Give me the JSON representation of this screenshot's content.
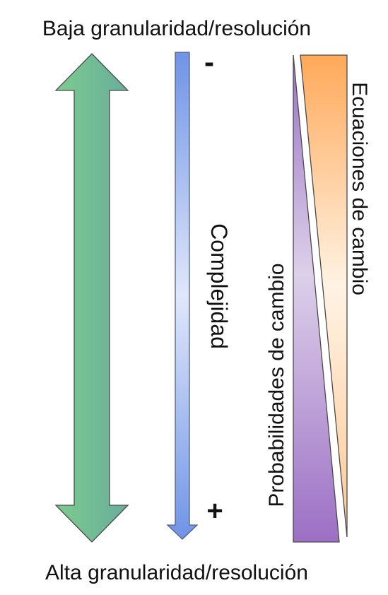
{
  "labels": {
    "top": "Baja granularidad/resolución",
    "bottom": "Alta granularidad/resolución",
    "complexity": "Complejidad",
    "minus": "-",
    "plus": "+",
    "probabilities": "Probabilidades de cambio",
    "equations": "Ecuaciones de cambio"
  },
  "colors": {
    "arrow_left": "#7ccc8e",
    "arrow_right": "#69ad9c",
    "complexity_edge": "#6f93e6",
    "complexity_center": "#dfe7fb",
    "probabilities_top": "#9a72c6",
    "probabilities_middle": "#ddd0ea",
    "probabilities_bottom": "#9c6fc4",
    "equations_top": "#ffa959",
    "equations_middle": "#fff3e4",
    "equations_bottom": "#ffc795"
  }
}
